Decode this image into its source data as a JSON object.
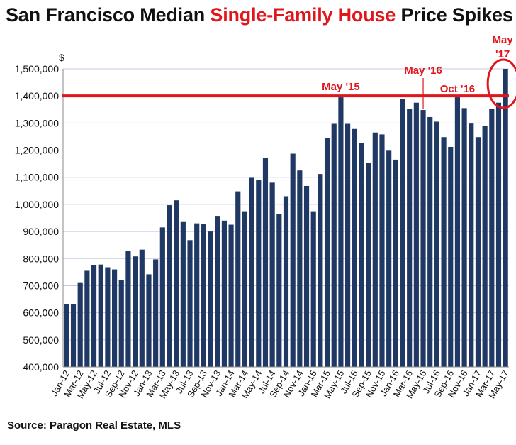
{
  "title": {
    "prefix": "San Francisco Median ",
    "highlight": "Single-Family House",
    "suffix": " Price Spikes"
  },
  "source": "Source: Paragon Real Estate, MLS",
  "colors": {
    "bar": "#1f3864",
    "accent": "#e0161d",
    "grid": "#c8cbe6"
  },
  "chart_data": {
    "type": "bar",
    "y_unit": "$",
    "ylim": [
      400000,
      1500000
    ],
    "yticks": [
      400000,
      500000,
      600000,
      700000,
      800000,
      900000,
      1000000,
      1100000,
      1200000,
      1300000,
      1400000,
      1500000
    ],
    "ytick_labels": [
      "400,000",
      "500,000",
      "600,000",
      "700,000",
      "800,000",
      "900,000",
      "1,000,000",
      "1,100,000",
      "1,200,000",
      "1,300,000",
      "1,400,000",
      "1,500,000"
    ],
    "grid": true,
    "categories": [
      "Jan-12",
      "Feb-12",
      "Mar-12",
      "Apr-12",
      "May-12",
      "Jun-12",
      "Jul-12",
      "Aug-12",
      "Sep-12",
      "Oct-12",
      "Nov-12",
      "Dec-12",
      "Jan-13",
      "Feb-13",
      "Mar-13",
      "Apr-13",
      "May-13",
      "Jun-13",
      "Jul-13",
      "Aug-13",
      "Sep-13",
      "Oct-13",
      "Nov-13",
      "Dec-13",
      "Jan-14",
      "Feb-14",
      "Mar-14",
      "Apr-14",
      "May-14",
      "Jun-14",
      "Jul-14",
      "Aug-14",
      "Sep-14",
      "Oct-14",
      "Nov-14",
      "Dec-14",
      "Jan-15",
      "Feb-15",
      "Mar-15",
      "Apr-15",
      "May-15",
      "Jun-15",
      "Jul-15",
      "Aug-15",
      "Sep-15",
      "Oct-15",
      "Nov-15",
      "Dec-15",
      "Jan-16",
      "Feb-16",
      "Mar-16",
      "Apr-16",
      "May-16",
      "Jun-16",
      "Jul-16",
      "Aug-16",
      "Sep-16",
      "Oct-16",
      "Nov-16",
      "Dec-16",
      "Jan-17",
      "Feb-17",
      "Mar-17",
      "Apr-17",
      "May-17"
    ],
    "xtick_labels": [
      "Jan-12",
      "",
      "Mar-12",
      "",
      "May-12",
      "",
      "Jul-12",
      "",
      "Sep-12",
      "",
      "Nov-12",
      "",
      "Jan-13",
      "",
      "Mar-13",
      "",
      "May-13",
      "",
      "Jul-13",
      "",
      "Sep-13",
      "",
      "Nov-13",
      "",
      "Jan-14",
      "",
      "Mar-14",
      "",
      "May-14",
      "",
      "Jul-14",
      "",
      "Sep-14",
      "",
      "Nov-14",
      "",
      "Jan-15",
      "",
      "Mar-15",
      "",
      "May-15",
      "",
      "Jul-15",
      "",
      "Sep-15",
      "",
      "Nov-15",
      "",
      "Jan-16",
      "",
      "Mar-16",
      "",
      "May-16",
      "",
      "Jul-16",
      "",
      "Sep-16",
      "",
      "Nov-16",
      "",
      "Jan-17",
      "",
      "Mar-17",
      "",
      "May-17"
    ],
    "values": [
      632000,
      632000,
      710000,
      755000,
      775000,
      778000,
      768000,
      760000,
      722000,
      827000,
      808000,
      833000,
      742000,
      797000,
      915000,
      997000,
      1015000,
      935000,
      868000,
      930000,
      927000,
      900000,
      955000,
      940000,
      925000,
      1048000,
      972000,
      1098000,
      1090000,
      1172000,
      1080000,
      965000,
      1030000,
      1187000,
      1125000,
      1068000,
      972000,
      1112000,
      1245000,
      1297000,
      1395000,
      1297000,
      1278000,
      1225000,
      1152000,
      1265000,
      1258000,
      1198000,
      1165000,
      1390000,
      1352000,
      1375000,
      1348000,
      1322000,
      1305000,
      1248000,
      1212000,
      1395000,
      1355000,
      1298000,
      1248000,
      1288000,
      1352000,
      1375000,
      1500000
    ],
    "reference_line": {
      "value": 1400000
    },
    "annotations": [
      {
        "text": "May '15",
        "category": "May-15"
      },
      {
        "text": "May '16",
        "category": "May-16"
      },
      {
        "text": "Oct '16",
        "category": "Oct-16"
      },
      {
        "text": "May",
        "category": "May-17"
      },
      {
        "text": "'17",
        "category": "May-17"
      }
    ],
    "highlight_circle": {
      "category": "May-17"
    }
  }
}
